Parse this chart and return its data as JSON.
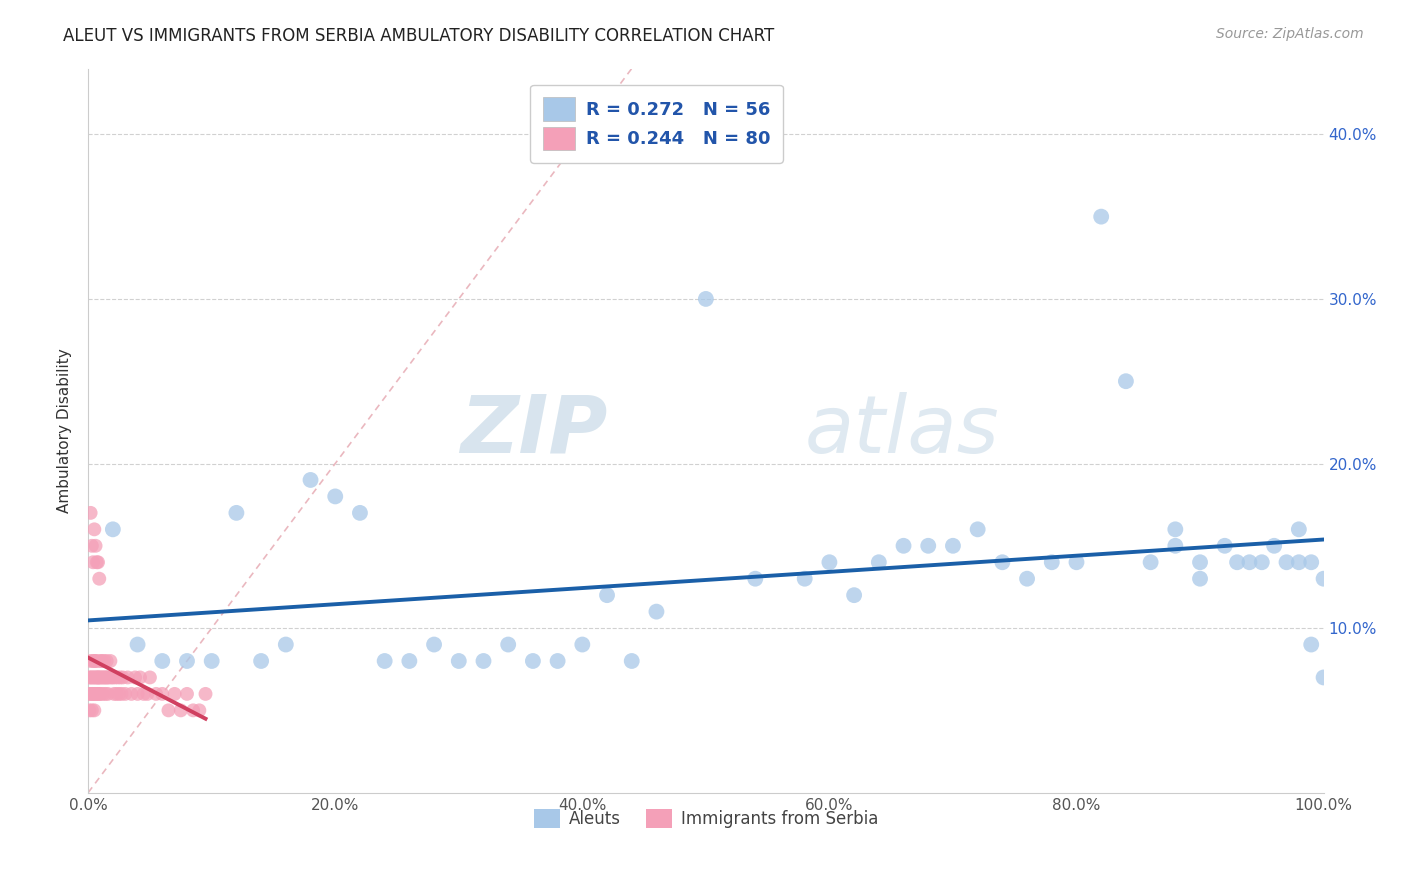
{
  "title": "ALEUT VS IMMIGRANTS FROM SERBIA AMBULATORY DISABILITY CORRELATION CHART",
  "source_text": "Source: ZipAtlas.com",
  "ylabel": "Ambulatory Disability",
  "legend_label_1": "Aleuts",
  "legend_label_2": "Immigrants from Serbia",
  "R1": 0.272,
  "N1": 56,
  "R2": 0.244,
  "N2": 80,
  "xlim": [
    0.0,
    1.0
  ],
  "ylim": [
    0.0,
    0.44
  ],
  "xtick_labels": [
    "0.0%",
    "20.0%",
    "40.0%",
    "60.0%",
    "80.0%",
    "100.0%"
  ],
  "xtick_vals": [
    0.0,
    0.2,
    0.4,
    0.6,
    0.8,
    1.0
  ],
  "ytick_labels": [
    "10.0%",
    "20.0%",
    "30.0%",
    "40.0%"
  ],
  "ytick_vals": [
    0.1,
    0.2,
    0.3,
    0.4
  ],
  "color_aleut": "#a8c8e8",
  "color_serbia": "#f4a0b8",
  "line_color_aleut": "#1a5fa8",
  "line_color_serbia": "#d04060",
  "diagonal_color": "#e8b0b8",
  "background_color": "#ffffff",
  "watermark_color": "#d0dff0",
  "aleut_x": [
    0.02,
    0.04,
    0.06,
    0.08,
    0.1,
    0.12,
    0.14,
    0.16,
    0.18,
    0.2,
    0.22,
    0.24,
    0.26,
    0.28,
    0.3,
    0.32,
    0.34,
    0.36,
    0.38,
    0.4,
    0.42,
    0.44,
    0.46,
    0.5,
    0.54,
    0.58,
    0.6,
    0.62,
    0.64,
    0.66,
    0.68,
    0.7,
    0.72,
    0.74,
    0.76,
    0.78,
    0.8,
    0.82,
    0.84,
    0.86,
    0.88,
    0.88,
    0.9,
    0.9,
    0.92,
    0.93,
    0.94,
    0.95,
    0.96,
    0.97,
    0.98,
    0.98,
    0.99,
    0.99,
    1.0,
    1.0
  ],
  "aleut_y": [
    0.16,
    0.09,
    0.08,
    0.08,
    0.08,
    0.17,
    0.08,
    0.09,
    0.19,
    0.18,
    0.17,
    0.08,
    0.08,
    0.09,
    0.08,
    0.08,
    0.09,
    0.08,
    0.08,
    0.09,
    0.12,
    0.08,
    0.11,
    0.3,
    0.13,
    0.13,
    0.14,
    0.12,
    0.14,
    0.15,
    0.15,
    0.15,
    0.16,
    0.14,
    0.13,
    0.14,
    0.14,
    0.35,
    0.25,
    0.14,
    0.15,
    0.16,
    0.14,
    0.13,
    0.15,
    0.14,
    0.14,
    0.14,
    0.15,
    0.14,
    0.16,
    0.14,
    0.09,
    0.14,
    0.07,
    0.13
  ],
  "serbia_x": [
    0.001,
    0.001,
    0.001,
    0.002,
    0.002,
    0.002,
    0.003,
    0.003,
    0.003,
    0.004,
    0.004,
    0.004,
    0.005,
    0.005,
    0.005,
    0.005,
    0.006,
    0.006,
    0.006,
    0.007,
    0.007,
    0.007,
    0.008,
    0.008,
    0.008,
    0.009,
    0.009,
    0.01,
    0.01,
    0.01,
    0.011,
    0.011,
    0.012,
    0.012,
    0.013,
    0.013,
    0.014,
    0.014,
    0.015,
    0.015,
    0.016,
    0.016,
    0.017,
    0.018,
    0.019,
    0.02,
    0.021,
    0.022,
    0.023,
    0.024,
    0.025,
    0.026,
    0.027,
    0.028,
    0.03,
    0.032,
    0.035,
    0.038,
    0.04,
    0.042,
    0.045,
    0.048,
    0.05,
    0.055,
    0.06,
    0.065,
    0.07,
    0.075,
    0.08,
    0.085,
    0.09,
    0.095,
    0.002,
    0.003,
    0.004,
    0.005,
    0.006,
    0.007,
    0.008,
    0.009
  ],
  "serbia_y": [
    0.06,
    0.07,
    0.05,
    0.07,
    0.06,
    0.08,
    0.06,
    0.07,
    0.05,
    0.07,
    0.06,
    0.08,
    0.07,
    0.08,
    0.06,
    0.05,
    0.07,
    0.06,
    0.08,
    0.07,
    0.06,
    0.08,
    0.07,
    0.06,
    0.07,
    0.07,
    0.06,
    0.08,
    0.07,
    0.06,
    0.07,
    0.08,
    0.07,
    0.06,
    0.08,
    0.07,
    0.07,
    0.06,
    0.08,
    0.07,
    0.07,
    0.06,
    0.07,
    0.08,
    0.07,
    0.07,
    0.06,
    0.07,
    0.06,
    0.07,
    0.06,
    0.07,
    0.06,
    0.07,
    0.06,
    0.07,
    0.06,
    0.07,
    0.06,
    0.07,
    0.06,
    0.06,
    0.07,
    0.06,
    0.06,
    0.05,
    0.06,
    0.05,
    0.06,
    0.05,
    0.05,
    0.06,
    0.17,
    0.15,
    0.14,
    0.16,
    0.15,
    0.14,
    0.14,
    0.13
  ]
}
